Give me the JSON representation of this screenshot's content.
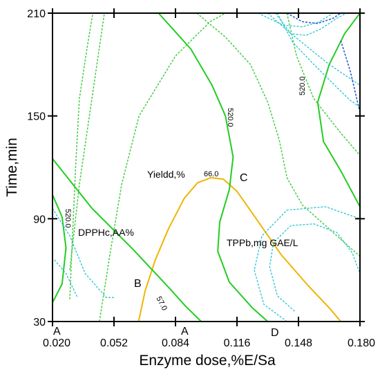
{
  "chart_data": {
    "type": "contour",
    "xlabel": "Enzyme dose,%E/Sa",
    "ylabel": "Time,min",
    "xlim": [
      0.02,
      0.18
    ],
    "ylim": [
      30,
      210
    ],
    "xticks": [
      "0.020",
      "0.052",
      "0.084",
      "0.116",
      "0.148",
      "0.180"
    ],
    "yticks": [
      "30",
      "90",
      "150",
      "210"
    ],
    "grid": false,
    "colors": {
      "frame": "#000000",
      "green_solid": "#22cc22",
      "green_dashed": "#44cc44",
      "cyan_dashed": "#22c4d0",
      "orange": "#f0b400",
      "blue_dashed": "#2050d0"
    },
    "annotations": {
      "yield_label": "Yieldd,%",
      "dpph_label": "DPPHc,AA%",
      "tpp_label": "TPPb,mg GAE/L",
      "point_A_left": "A",
      "point_A_mid": "A",
      "point_B": "B",
      "point_C": "C",
      "point_D": "D"
    },
    "contour_labels": {
      "yield_66": "66.0",
      "yield_57": "57.0",
      "tpp_520_center": "520.0",
      "tpp_520_right": "520.0",
      "tpp_520_left": "520.0"
    },
    "series": [
      {
        "style": "orange",
        "points": [
          [
            0.0648,
            30
          ],
          [
            0.0682,
            48
          ],
          [
            0.0735,
            66
          ],
          [
            0.0803,
            84
          ],
          [
            0.0886,
            102
          ],
          [
            0.0955,
            111
          ],
          [
            0.1025,
            114
          ],
          [
            0.109,
            113
          ],
          [
            0.116,
            106
          ],
          [
            0.126,
            90
          ],
          [
            0.139,
            69
          ],
          [
            0.153,
            51
          ],
          [
            0.164,
            38
          ],
          [
            0.17,
            30
          ]
        ]
      },
      {
        "style": "green_solid",
        "points": [
          [
            0.02,
            125
          ],
          [
            0.0406,
            96
          ],
          [
            0.062,
            72
          ],
          [
            0.0812,
            49
          ],
          [
            0.0892,
            39
          ],
          [
            0.0974,
            30
          ]
        ]
      },
      {
        "style": "green_solid",
        "points": [
          [
            0.02,
            41
          ],
          [
            0.025,
            52
          ],
          [
            0.027,
            73
          ],
          [
            0.025,
            91
          ],
          [
            0.02,
            104
          ]
        ]
      },
      {
        "style": "green_solid",
        "points": [
          [
            0.0752,
            210
          ],
          [
            0.092,
            189
          ],
          [
            0.103,
            168
          ],
          [
            0.11,
            150
          ],
          [
            0.114,
            126
          ],
          [
            0.112,
            107
          ],
          [
            0.107,
            88
          ],
          [
            0.106,
            71
          ],
          [
            0.112,
            53
          ],
          [
            0.124,
            38
          ],
          [
            0.132,
            30
          ]
        ]
      },
      {
        "style": "green_solid",
        "points": [
          [
            0.18,
            210
          ],
          [
            0.172,
            198
          ],
          [
            0.164,
            180
          ],
          [
            0.158,
            158
          ],
          [
            0.161,
            135
          ],
          [
            0.17,
            118
          ],
          [
            0.18,
            97
          ]
        ]
      },
      {
        "style": "green_dashed",
        "points": [
          [
            0.029,
            43
          ],
          [
            0.03,
            70
          ],
          [
            0.032,
            120
          ],
          [
            0.034,
            160
          ],
          [
            0.038,
            190
          ],
          [
            0.041,
            210
          ]
        ]
      },
      {
        "style": "green_dashed",
        "points": [
          [
            0.029,
            60
          ],
          [
            0.034,
            110
          ],
          [
            0.047,
            210
          ]
        ]
      },
      {
        "style": "green_dashed",
        "points": [
          [
            0.0444,
            30
          ],
          [
            0.05,
            70
          ],
          [
            0.056,
            110
          ],
          [
            0.065,
            150
          ],
          [
            0.084,
            185
          ],
          [
            0.102,
            205
          ],
          [
            0.11,
            210
          ]
        ]
      },
      {
        "style": "green_dashed",
        "points": [
          [
            0.0951,
            210
          ],
          [
            0.11,
            196
          ],
          [
            0.123,
            180
          ],
          [
            0.132,
            158
          ],
          [
            0.138,
            136
          ],
          [
            0.142,
            114
          ],
          [
            0.15,
            98
          ],
          [
            0.162,
            86
          ],
          [
            0.18,
            68
          ]
        ]
      },
      {
        "style": "green_dashed",
        "points": [
          [
            0.142,
            210
          ],
          [
            0.147,
            185
          ],
          [
            0.156,
            160
          ],
          [
            0.17,
            140
          ],
          [
            0.18,
            127
          ]
        ]
      },
      {
        "style": "cyan_dashed",
        "points": [
          [
            0.146,
            36
          ],
          [
            0.137,
            45
          ],
          [
            0.133,
            62
          ],
          [
            0.135,
            76
          ],
          [
            0.144,
            86
          ],
          [
            0.156,
            87
          ],
          [
            0.168,
            82
          ],
          [
            0.176,
            70
          ],
          [
            0.18,
            58
          ]
        ]
      },
      {
        "style": "cyan_dashed",
        "points": [
          [
            0.142,
            30
          ],
          [
            0.13,
            40
          ],
          [
            0.125,
            60
          ],
          [
            0.129,
            80
          ],
          [
            0.142,
            95
          ],
          [
            0.162,
            97
          ],
          [
            0.18,
            90
          ]
        ]
      },
      {
        "style": "cyan_dashed",
        "points": [
          [
            0.137,
            210
          ],
          [
            0.145,
            193
          ],
          [
            0.156,
            180
          ],
          [
            0.165,
            170
          ],
          [
            0.174,
            160
          ],
          [
            0.18,
            155
          ]
        ]
      },
      {
        "style": "cyan_dashed",
        "points": [
          [
            0.132,
            210
          ],
          [
            0.142,
            200
          ],
          [
            0.153,
            190
          ],
          [
            0.164,
            180
          ],
          [
            0.18,
            168
          ]
        ]
      },
      {
        "style": "cyan_dashed",
        "points": [
          [
            0.136,
            210
          ],
          [
            0.144,
            198
          ],
          [
            0.152,
            197
          ],
          [
            0.16,
            201
          ],
          [
            0.168,
            207
          ],
          [
            0.173,
            210
          ]
        ]
      },
      {
        "style": "cyan_dashed",
        "points": [
          [
            0.127,
            210
          ],
          [
            0.14,
            203
          ],
          [
            0.15,
            202
          ],
          [
            0.159,
            205
          ],
          [
            0.166,
            210
          ]
        ]
      },
      {
        "style": "cyan_dashed",
        "points": [
          [
            0.02,
            96
          ],
          [
            0.029,
            80
          ],
          [
            0.037,
            58
          ],
          [
            0.048,
            44
          ],
          [
            0.052,
            44
          ]
        ]
      },
      {
        "style": "cyan_dashed",
        "points": [
          [
            0.021,
            66
          ],
          [
            0.027,
            58
          ],
          [
            0.033,
            44
          ]
        ]
      },
      {
        "style": "blue_dashed",
        "points": [
          [
            0.142,
            210
          ],
          [
            0.15,
            205
          ],
          [
            0.158,
            204
          ],
          [
            0.166,
            207
          ],
          [
            0.17,
            210
          ]
        ]
      },
      {
        "style": "blue_dashed",
        "points": [
          [
            0.17,
            194
          ],
          [
            0.175,
            176
          ],
          [
            0.18,
            152
          ]
        ]
      }
    ]
  }
}
